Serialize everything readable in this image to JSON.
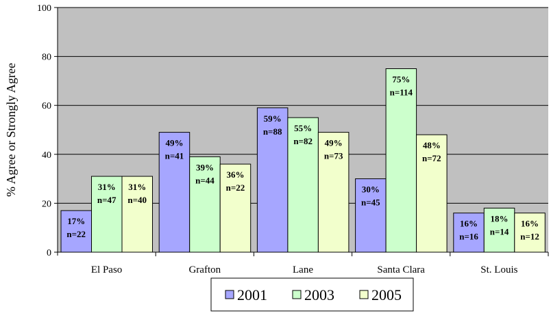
{
  "chart_data": {
    "type": "bar",
    "title": "",
    "xlabel": "",
    "ylabel": "% Agree or Strongly Agree",
    "ylim": [
      0,
      100
    ],
    "yticks": [
      0,
      20,
      40,
      60,
      80,
      100
    ],
    "grid": true,
    "legend_position": "bottom",
    "categories": [
      "El Paso",
      "Grafton",
      "Lane",
      "Santa Clara",
      "St. Louis"
    ],
    "series": [
      {
        "name": "2001",
        "color": "#a6a6ff",
        "values": [
          17,
          49,
          59,
          30,
          16
        ],
        "labels": [
          "17%",
          "49%",
          "59%",
          "30%",
          "16%"
        ],
        "n": [
          "n=22",
          "n=41",
          "n=88",
          "n=45",
          "n=16"
        ]
      },
      {
        "name": "2003",
        "color": "#ccffcc",
        "values": [
          31,
          39,
          55,
          75,
          18
        ],
        "labels": [
          "31%",
          "39%",
          "55%",
          "75%",
          "18%"
        ],
        "n": [
          "n=47",
          "n=44",
          "n=82",
          "n=114",
          "n=14"
        ]
      },
      {
        "name": "2005",
        "color": "#f2ffcc",
        "values": [
          31,
          36,
          49,
          48,
          16
        ],
        "labels": [
          "31%",
          "36%",
          "49%",
          "48%",
          "16%"
        ],
        "n": [
          "n=40",
          "n=22",
          "n=73",
          "n=72",
          "n=12"
        ]
      }
    ],
    "plot_bg": "#c0c0c0"
  }
}
